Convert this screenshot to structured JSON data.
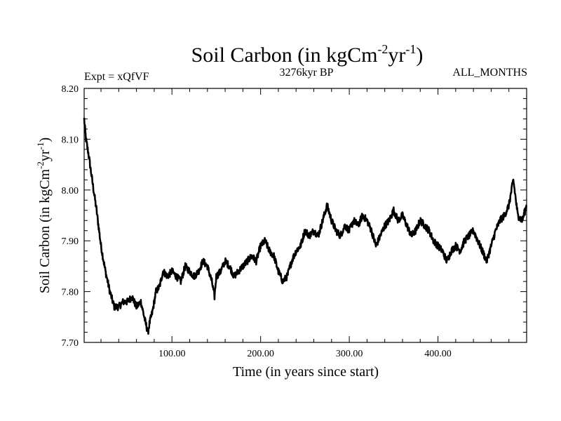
{
  "chart_data": {
    "type": "line",
    "title": "Soil Carbon (in kgCm",
    "title_sup1": "-2",
    "title_mid": "yr",
    "title_sup2": "-1",
    "title_end": ")",
    "subtitle_left": "Expt = xQfVF",
    "subtitle_center": "3276kyr BP",
    "subtitle_right": "ALL_MONTHS",
    "xlabel": "Time (in years since start)",
    "ylabel_main": "Soil Carbon (in kgCm",
    "ylabel_sup1": "-2",
    "ylabel_mid": "yr",
    "ylabel_sup2": "-1",
    "ylabel_end": ")",
    "xlim": [
      1,
      500
    ],
    "ylim": [
      7.7,
      8.2
    ],
    "x_ticks": [
      100,
      200,
      300,
      400
    ],
    "x_tick_labels": [
      "100.00",
      "200.00",
      "300.00",
      "400.00"
    ],
    "y_ticks": [
      7.7,
      7.8,
      7.9,
      8.0,
      8.1,
      8.2
    ],
    "y_tick_labels": [
      "7.70",
      "7.80",
      "7.90",
      "8.00",
      "8.10",
      "8.20"
    ],
    "series": [
      {
        "name": "Soil Carbon",
        "color": "#000000",
        "x": [
          1,
          3,
          6,
          10,
          15,
          20,
          25,
          30,
          35,
          40,
          45,
          50,
          55,
          60,
          65,
          70,
          73,
          75,
          78,
          82,
          86,
          90,
          95,
          100,
          105,
          110,
          115,
          120,
          125,
          130,
          135,
          140,
          145,
          148,
          150,
          155,
          160,
          165,
          170,
          175,
          180,
          185,
          190,
          195,
          200,
          205,
          210,
          215,
          220,
          225,
          230,
          235,
          240,
          245,
          250,
          255,
          260,
          265,
          270,
          275,
          280,
          285,
          290,
          295,
          300,
          305,
          310,
          315,
          320,
          325,
          330,
          335,
          340,
          345,
          350,
          355,
          360,
          365,
          370,
          375,
          380,
          385,
          390,
          395,
          400,
          405,
          410,
          415,
          420,
          425,
          430,
          435,
          440,
          445,
          450,
          455,
          460,
          465,
          470,
          475,
          480,
          485,
          490,
          495,
          500
        ],
        "values": [
          8.14,
          8.1,
          8.07,
          8.02,
          7.96,
          7.89,
          7.84,
          7.8,
          7.77,
          7.77,
          7.78,
          7.78,
          7.79,
          7.77,
          7.78,
          7.74,
          7.72,
          7.74,
          7.76,
          7.8,
          7.81,
          7.84,
          7.83,
          7.84,
          7.83,
          7.82,
          7.85,
          7.84,
          7.83,
          7.84,
          7.86,
          7.85,
          7.82,
          7.79,
          7.83,
          7.84,
          7.86,
          7.85,
          7.83,
          7.84,
          7.85,
          7.86,
          7.87,
          7.86,
          7.89,
          7.9,
          7.88,
          7.87,
          7.84,
          7.82,
          7.83,
          7.86,
          7.88,
          7.89,
          7.92,
          7.91,
          7.92,
          7.91,
          7.94,
          7.97,
          7.94,
          7.92,
          7.91,
          7.93,
          7.92,
          7.94,
          7.93,
          7.95,
          7.94,
          7.92,
          7.89,
          7.91,
          7.93,
          7.94,
          7.96,
          7.94,
          7.95,
          7.93,
          7.91,
          7.92,
          7.94,
          7.93,
          7.92,
          7.9,
          7.89,
          7.88,
          7.86,
          7.88,
          7.89,
          7.88,
          7.9,
          7.91,
          7.92,
          7.9,
          7.88,
          7.86,
          7.89,
          7.92,
          7.94,
          7.95,
          7.97,
          8.02,
          7.95,
          7.94,
          7.97
        ]
      }
    ]
  }
}
